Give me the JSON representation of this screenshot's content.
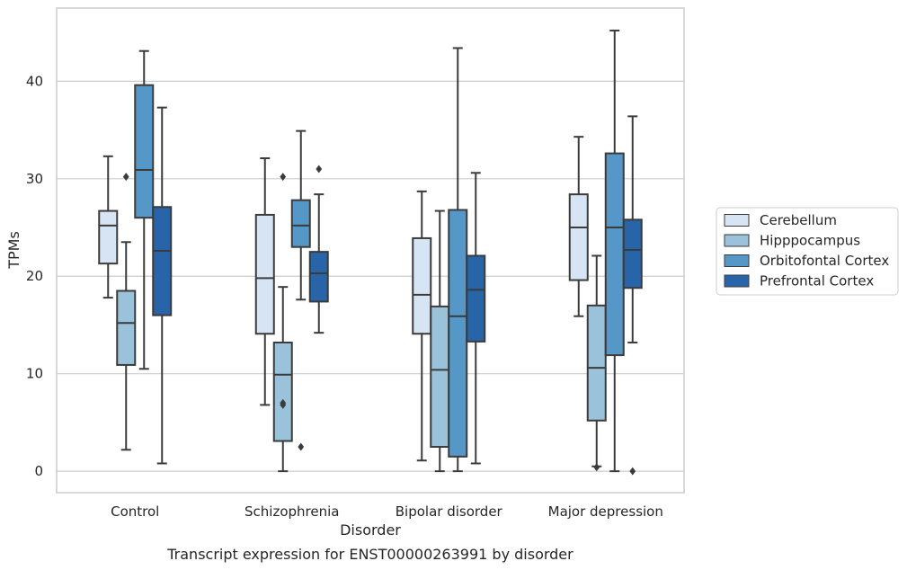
{
  "chart_data": {
    "type": "box",
    "caption": "Transcript expression for ENST00000263991 by disorder",
    "xlabel": "Disorder",
    "ylabel": "TPMs",
    "ylim": [
      -2.2,
      47.5
    ],
    "yticks": [
      0,
      10,
      20,
      30,
      40
    ],
    "grid": "horizontal",
    "legend_position": "right",
    "categories": [
      "Control",
      "Schizophrenia",
      "Bipolar disorder",
      "Major depression"
    ],
    "series": [
      {
        "name": "Cerebellum",
        "color": "#d6e4f3",
        "boxes": [
          {
            "whislo": 17.8,
            "q1": 21.3,
            "med": 25.2,
            "q3": 26.7,
            "whishi": 32.3,
            "fliers": []
          },
          {
            "whislo": 6.8,
            "q1": 14.1,
            "med": 19.8,
            "q3": 26.3,
            "whishi": 32.1,
            "fliers": []
          },
          {
            "whislo": 1.1,
            "q1": 14.1,
            "med": 18.1,
            "q3": 23.9,
            "whishi": 28.7,
            "fliers": []
          },
          {
            "whislo": 15.9,
            "q1": 19.6,
            "med": 25.0,
            "q3": 28.4,
            "whishi": 34.3,
            "fliers": []
          }
        ]
      },
      {
        "name": "Hipppocampus",
        "color": "#9ac2db",
        "boxes": [
          {
            "whislo": 2.2,
            "q1": 10.9,
            "med": 15.2,
            "q3": 18.5,
            "whishi": 23.5,
            "fliers": [
              30.2
            ]
          },
          {
            "whislo": 0.0,
            "q1": 3.1,
            "med": 9.9,
            "q3": 13.2,
            "whishi": 18.9,
            "fliers": [
              30.2,
              6.8,
              7.0
            ]
          },
          {
            "whislo": 0.0,
            "q1": 2.5,
            "med": 10.4,
            "q3": 16.9,
            "whishi": 26.7,
            "fliers": []
          },
          {
            "whislo": 0.5,
            "q1": 5.2,
            "med": 10.6,
            "q3": 17.0,
            "whishi": 22.1,
            "fliers": [
              0.4
            ]
          }
        ]
      },
      {
        "name": "Orbitofontal Cortex",
        "color": "#5597c6",
        "boxes": [
          {
            "whislo": 10.5,
            "q1": 26.0,
            "med": 30.9,
            "q3": 39.6,
            "whishi": 43.1,
            "fliers": []
          },
          {
            "whislo": 17.6,
            "q1": 23.0,
            "med": 25.2,
            "q3": 27.8,
            "whishi": 34.9,
            "fliers": [
              2.5
            ]
          },
          {
            "whislo": 0.0,
            "q1": 1.5,
            "med": 15.9,
            "q3": 26.8,
            "whishi": 43.4,
            "fliers": []
          },
          {
            "whislo": 0.0,
            "q1": 11.9,
            "med": 25.0,
            "q3": 32.6,
            "whishi": 45.2,
            "fliers": []
          }
        ]
      },
      {
        "name": "Prefrontal Cortex",
        "color": "#2765a8",
        "boxes": [
          {
            "whislo": 0.8,
            "q1": 16.0,
            "med": 22.6,
            "q3": 27.1,
            "whishi": 37.3,
            "fliers": []
          },
          {
            "whislo": 14.2,
            "q1": 17.4,
            "med": 20.3,
            "q3": 22.5,
            "whishi": 28.4,
            "fliers": [
              31.0
            ]
          },
          {
            "whislo": 0.8,
            "q1": 13.3,
            "med": 18.6,
            "q3": 22.1,
            "whishi": 30.6,
            "fliers": []
          },
          {
            "whislo": 13.2,
            "q1": 18.8,
            "med": 22.7,
            "q3": 25.8,
            "whishi": 36.4,
            "fliers": [
              0.0
            ]
          }
        ]
      }
    ]
  }
}
